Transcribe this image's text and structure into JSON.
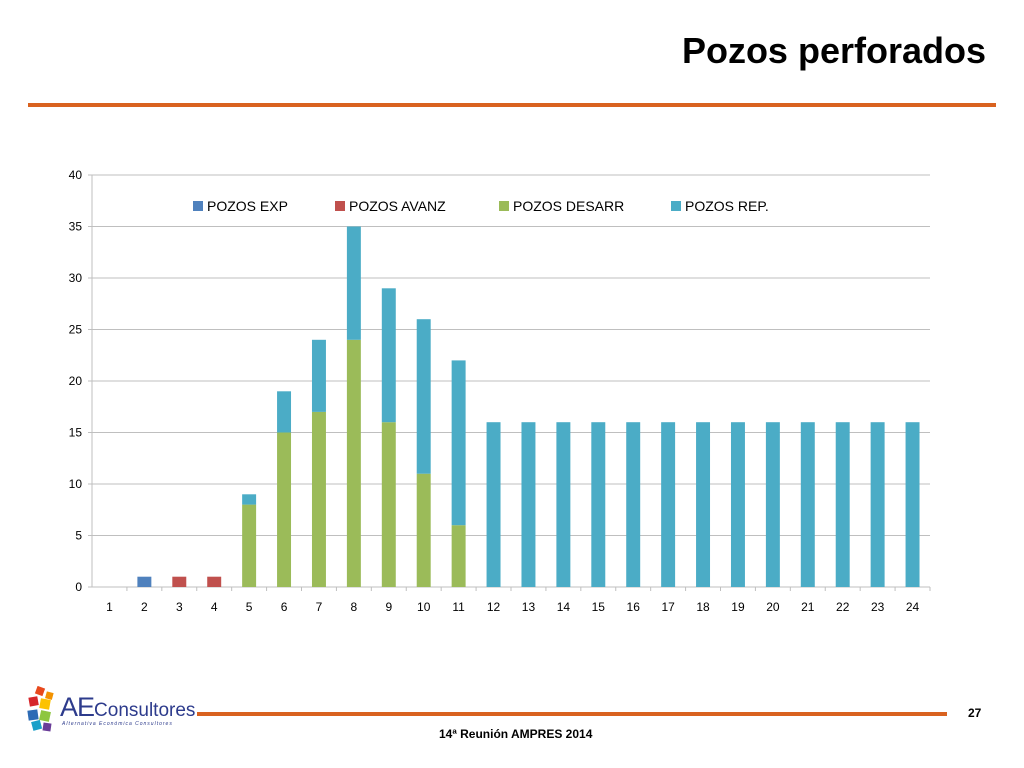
{
  "slide": {
    "title": "Pozos perforados",
    "page_number": "27",
    "footer": "14ª Reunión AMPRES 2014"
  },
  "logo": {
    "brand_initials": "AE",
    "brand_rest": "Consultores",
    "tagline": "Alternativa Económica Consultores"
  },
  "colors": {
    "accent_rule": "#d9621f",
    "grid": "#bfbfbf",
    "axis_text": "#000000"
  },
  "chart_data": {
    "type": "bar",
    "stacked": true,
    "categories": [
      "1",
      "2",
      "3",
      "4",
      "5",
      "6",
      "7",
      "8",
      "9",
      "10",
      "11",
      "12",
      "13",
      "14",
      "15",
      "16",
      "17",
      "18",
      "19",
      "20",
      "21",
      "22",
      "23",
      "24"
    ],
    "series": [
      {
        "name": "POZOS EXP",
        "color": "#4f81bd",
        "values": [
          0,
          1,
          0,
          0,
          0,
          0,
          0,
          0,
          0,
          0,
          0,
          0,
          0,
          0,
          0,
          0,
          0,
          0,
          0,
          0,
          0,
          0,
          0,
          0
        ]
      },
      {
        "name": "POZOS AVANZ",
        "color": "#c0504d",
        "values": [
          0,
          0,
          1,
          1,
          0,
          0,
          0,
          0,
          0,
          0,
          0,
          0,
          0,
          0,
          0,
          0,
          0,
          0,
          0,
          0,
          0,
          0,
          0,
          0
        ]
      },
      {
        "name": "POZOS DESARR",
        "color": "#9bbb59",
        "values": [
          0,
          0,
          0,
          0,
          8,
          15,
          17,
          24,
          16,
          11,
          6,
          0,
          0,
          0,
          0,
          0,
          0,
          0,
          0,
          0,
          0,
          0,
          0,
          0
        ]
      },
      {
        "name": "POZOS REP.",
        "color": "#4bacc6",
        "values": [
          0,
          0,
          0,
          0,
          1,
          4,
          7,
          11,
          13,
          15,
          16,
          16,
          16,
          16,
          16,
          16,
          16,
          16,
          16,
          16,
          16,
          16,
          16,
          16
        ]
      }
    ],
    "ylim": [
      0,
      40
    ],
    "yticks": [
      "0",
      "5",
      "10",
      "15",
      "20",
      "25",
      "30",
      "35",
      "40"
    ],
    "grid": true,
    "legend_position": "top"
  }
}
